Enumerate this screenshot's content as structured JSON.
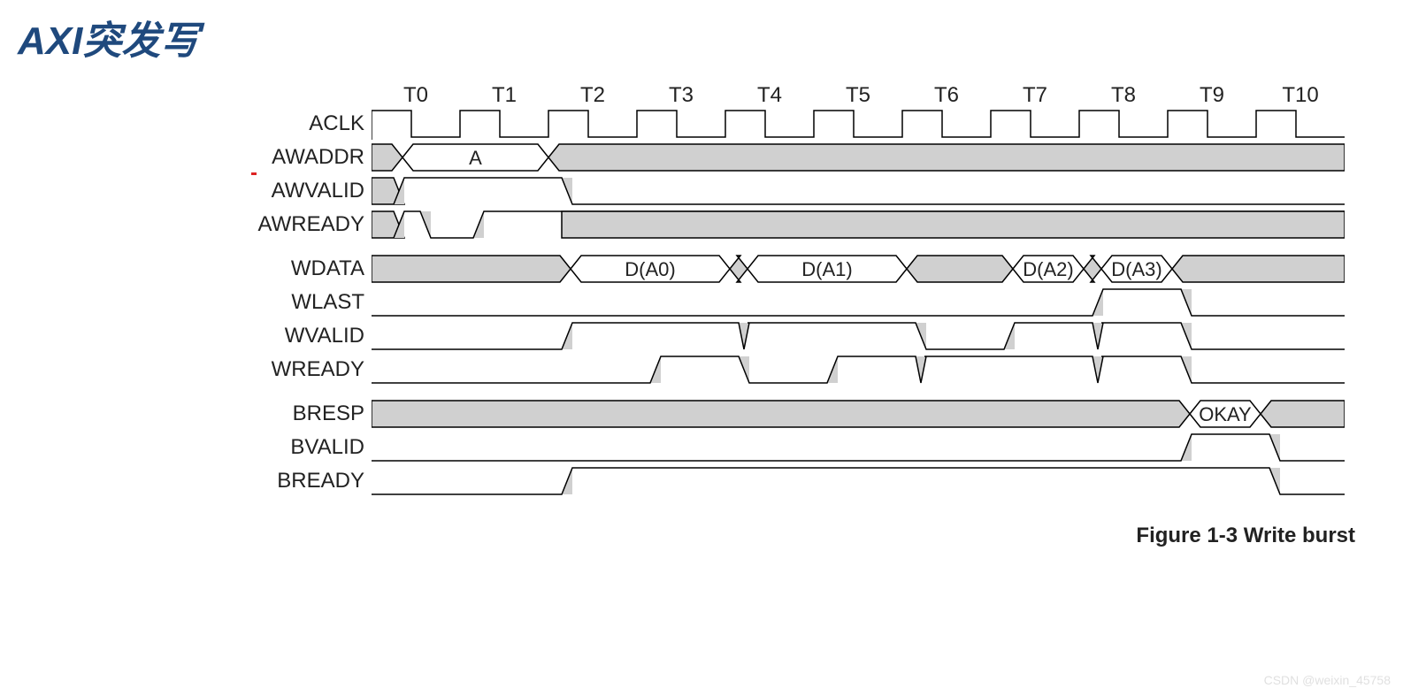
{
  "title": "AXI突发写",
  "caption": "Figure 1-3 Write burst",
  "watermark": "CSDN @weixin_45758",
  "diagram": {
    "type": "timing-diagram",
    "background_color": "#ffffff",
    "bus_fill": "#d0d0d0",
    "stroke": "#000000",
    "stroke_width": 1.5,
    "title_color": "#1f497d",
    "label_fontsize": 24,
    "tick_fontsize": 24,
    "data_fontsize": 22,
    "period": 100,
    "num_cycles": 11,
    "left_x": 0,
    "ticks": [
      "T0",
      "T1",
      "T2",
      "T3",
      "T4",
      "T5",
      "T6",
      "T7",
      "T8",
      "T9",
      "T10"
    ],
    "signals": [
      {
        "name": "ACLK",
        "type": "clock"
      },
      {
        "name": "AWADDR",
        "type": "bus",
        "segments": [
          {
            "from": 0,
            "to": 0.35,
            "val": null
          },
          {
            "from": 0.35,
            "to": 2.0,
            "val": "A"
          },
          {
            "from": 2.0,
            "to": 11,
            "val": null
          }
        ]
      },
      {
        "name": "AWVALID",
        "type": "logic",
        "edges": [
          {
            "at": 0.25,
            "to": 1
          },
          {
            "at": 2.15,
            "to": 0
          }
        ],
        "init": 0,
        "shade_before": 0.25
      },
      {
        "name": "AWREADY",
        "type": "logic",
        "edges": [
          {
            "at": 0.25,
            "to": 1
          },
          {
            "at": 0.55,
            "to": 0
          },
          {
            "at": 1.15,
            "to": 1
          }
        ],
        "init": 0,
        "shade_before": 0.25,
        "shade_high_after": 2.15
      },
      {
        "name": "WDATA",
        "type": "bus",
        "segments": [
          {
            "from": 0,
            "to": 2.25,
            "val": null
          },
          {
            "from": 2.25,
            "to": 4.05,
            "val": "D(A0)"
          },
          {
            "from": 4.05,
            "to": 4.25,
            "val": null
          },
          {
            "from": 4.25,
            "to": 6.05,
            "val": "D(A1)"
          },
          {
            "from": 6.05,
            "to": 7.25,
            "val": null
          },
          {
            "from": 7.25,
            "to": 8.05,
            "val": "D(A2)"
          },
          {
            "from": 8.05,
            "to": 8.25,
            "val": null
          },
          {
            "from": 8.25,
            "to": 9.05,
            "val": "D(A3)"
          },
          {
            "from": 9.05,
            "to": 11,
            "val": null
          }
        ],
        "gap": true
      },
      {
        "name": "WLAST",
        "type": "logic",
        "edges": [
          {
            "at": 8.15,
            "to": 1
          },
          {
            "at": 9.15,
            "to": 0
          }
        ],
        "init": 0
      },
      {
        "name": "WVALID",
        "type": "logic",
        "edges": [
          {
            "at": 2.15,
            "to": 1
          },
          {
            "at": 4.15,
            "to": 0,
            "glitch": true
          },
          {
            "at": 4.25,
            "to": 1
          },
          {
            "at": 6.15,
            "to": 0
          },
          {
            "at": 7.15,
            "to": 1
          },
          {
            "at": 8.15,
            "to": 0,
            "glitch": true
          },
          {
            "at": 8.25,
            "to": 1
          },
          {
            "at": 9.15,
            "to": 0
          }
        ],
        "init": 0
      },
      {
        "name": "WREADY",
        "type": "logic",
        "edges": [
          {
            "at": 3.15,
            "to": 1
          },
          {
            "at": 4.15,
            "to": 0
          },
          {
            "at": 5.15,
            "to": 1
          },
          {
            "at": 6.15,
            "to": 0,
            "glitch": true
          },
          {
            "at": 6.25,
            "to": 1
          },
          {
            "at": 8.15,
            "to": 0,
            "glitch": true
          },
          {
            "at": 8.25,
            "to": 1
          },
          {
            "at": 9.15,
            "to": 0
          }
        ],
        "init": 0
      },
      {
        "name": "BRESP",
        "type": "bus",
        "segments": [
          {
            "from": 0,
            "to": 9.25,
            "val": null
          },
          {
            "from": 9.25,
            "to": 10.05,
            "val": "OKAY"
          },
          {
            "from": 10.05,
            "to": 11,
            "val": null
          }
        ],
        "gap": true
      },
      {
        "name": "BVALID",
        "type": "logic",
        "edges": [
          {
            "at": 9.15,
            "to": 1
          },
          {
            "at": 10.15,
            "to": 0
          }
        ],
        "init": 0
      },
      {
        "name": "BREADY",
        "type": "logic",
        "edges": [
          {
            "at": 2.15,
            "to": 1
          },
          {
            "at": 10.15,
            "to": 0
          }
        ],
        "init": 0
      }
    ]
  }
}
